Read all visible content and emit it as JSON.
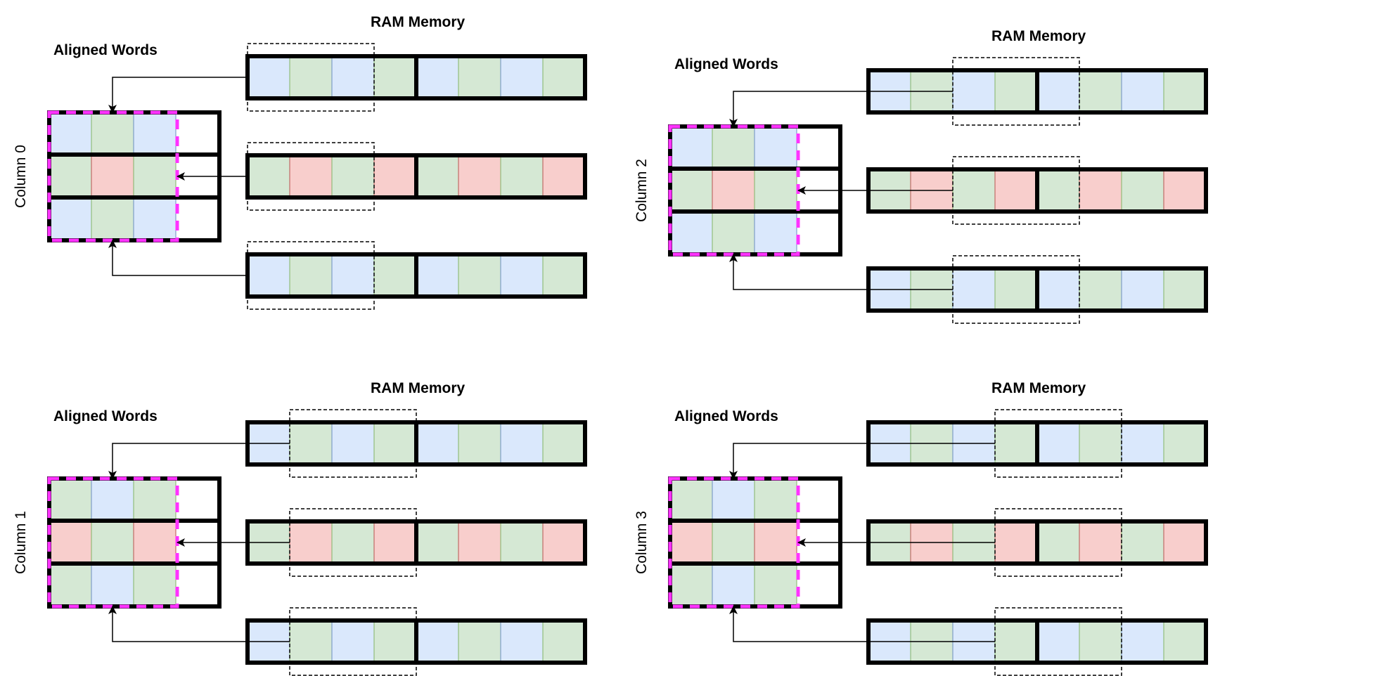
{
  "colors": {
    "blue": "#dae8fc",
    "blue_edge": "#6c8ebf",
    "green": "#d5e8d4",
    "green_edge": "#82b366",
    "red": "#f8cecc",
    "red_edge": "#b85450",
    "stroke": "#000000",
    "highlight": "#ff33ff"
  },
  "panels": [
    {
      "title": "RAM Memory",
      "words_label": "Aligned Words",
      "column_label": "Column 0",
      "column_index": 0,
      "rows": [
        [
          "blue",
          "green",
          "blue",
          "green",
          "blue",
          "green",
          "blue",
          "green"
        ],
        [
          "green",
          "red",
          "green",
          "red",
          "green",
          "red",
          "green",
          "red"
        ],
        [
          "blue",
          "green",
          "blue",
          "green",
          "blue",
          "green",
          "blue",
          "green"
        ]
      ],
      "words": [
        [
          "blue",
          "green",
          "blue"
        ],
        [
          "green",
          "red",
          "green"
        ],
        [
          "blue",
          "green",
          "blue"
        ]
      ]
    },
    {
      "title": "RAM Memory",
      "words_label": "Aligned Words",
      "column_label": "Column 2",
      "column_index": 2,
      "rows": [
        [
          "blue",
          "green",
          "blue",
          "green",
          "blue",
          "green",
          "blue",
          "green"
        ],
        [
          "green",
          "red",
          "green",
          "red",
          "green",
          "red",
          "green",
          "red"
        ],
        [
          "blue",
          "green",
          "blue",
          "green",
          "blue",
          "green",
          "blue",
          "green"
        ]
      ],
      "words": [
        [
          "blue",
          "green",
          "blue"
        ],
        [
          "green",
          "red",
          "green"
        ],
        [
          "blue",
          "green",
          "blue"
        ]
      ]
    },
    {
      "title": "RAM Memory",
      "words_label": "Aligned Words",
      "column_label": "Column 1",
      "column_index": 1,
      "rows": [
        [
          "blue",
          "green",
          "blue",
          "green",
          "blue",
          "green",
          "blue",
          "green"
        ],
        [
          "green",
          "red",
          "green",
          "red",
          "green",
          "red",
          "green",
          "red"
        ],
        [
          "blue",
          "green",
          "blue",
          "green",
          "blue",
          "green",
          "blue",
          "green"
        ]
      ],
      "words": [
        [
          "green",
          "blue",
          "green"
        ],
        [
          "red",
          "green",
          "red"
        ],
        [
          "green",
          "blue",
          "green"
        ]
      ]
    },
    {
      "title": "RAM Memory",
      "words_label": "Aligned Words",
      "column_label": "Column 3",
      "column_index": 3,
      "rows": [
        [
          "blue",
          "green",
          "blue",
          "green",
          "blue",
          "green",
          "blue",
          "green"
        ],
        [
          "green",
          "red",
          "green",
          "red",
          "green",
          "red",
          "green",
          "red"
        ],
        [
          "blue",
          "green",
          "blue",
          "green",
          "blue",
          "green",
          "blue",
          "green"
        ]
      ],
      "words": [
        [
          "green",
          "blue",
          "green"
        ],
        [
          "red",
          "green",
          "red"
        ],
        [
          "green",
          "blue",
          "green"
        ]
      ]
    }
  ]
}
